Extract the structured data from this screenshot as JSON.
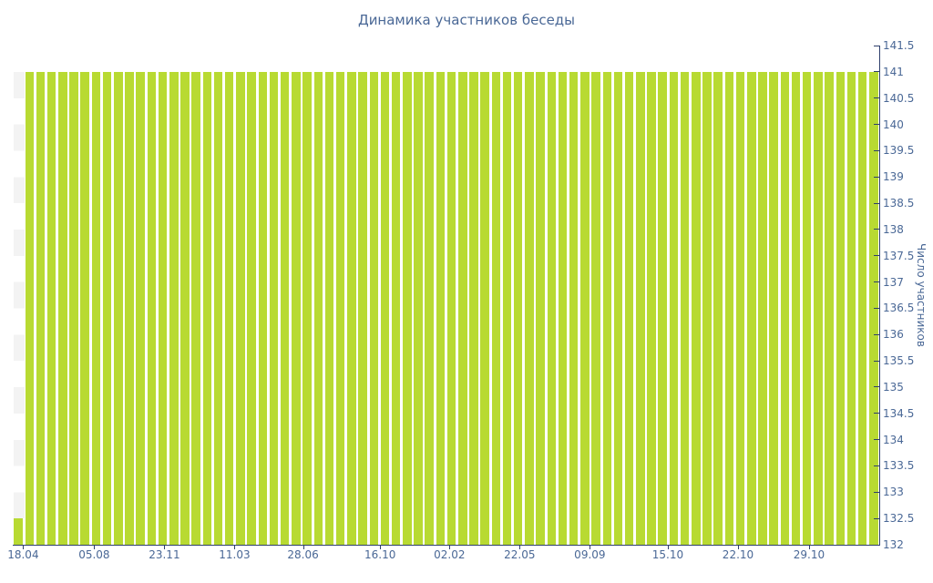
{
  "chart_data": {
    "type": "bar",
    "title": "Динамика участников беседы",
    "xlabel": "",
    "ylabel": "Число участников",
    "ylim": [
      132,
      141.5
    ],
    "ytick_step": 0.5,
    "grid": false,
    "legend": false,
    "y_axis_side": "right",
    "y_tick_labels": [
      "141.5",
      "141",
      "140.5",
      "140",
      "139.5",
      "139",
      "138.5",
      "138",
      "137.5",
      "137",
      "136.5",
      "136",
      "135.5",
      "135",
      "134.5",
      "134",
      "133.5",
      "133",
      "132.5",
      "132"
    ],
    "x_tick_labels": [
      "18.04",
      "05.08",
      "23.11",
      "11.03",
      "28.06",
      "16.10",
      "02.02",
      "22.05",
      "09.09",
      "15.10",
      "22.10",
      "29.10"
    ],
    "x_tick_pos_pct": [
      1.2,
      9.4,
      17.5,
      25.6,
      33.5,
      42.4,
      50.4,
      58.5,
      66.6,
      75.6,
      83.7,
      91.9
    ],
    "num_bars": 78,
    "values": [
      132.5,
      141,
      141,
      141,
      141,
      141,
      141,
      141,
      141,
      141,
      141,
      141,
      141,
      141,
      141,
      141,
      141,
      141,
      141,
      141,
      141,
      141,
      141,
      141,
      141,
      141,
      141,
      141,
      141,
      141,
      141,
      141,
      141,
      141,
      141,
      141,
      141,
      141,
      141,
      141,
      141,
      141,
      141,
      141,
      141,
      141,
      141,
      141,
      141,
      141,
      141,
      141,
      141,
      141,
      141,
      141,
      141,
      141,
      141,
      141,
      141,
      141,
      141,
      141,
      141,
      141,
      141,
      141,
      141,
      141,
      141,
      141,
      141,
      141,
      141,
      141,
      141,
      141
    ],
    "first_column_band_top_value": 141,
    "colors": {
      "bar": "#b8da32",
      "axis": "#2e3f6c",
      "text": "#4a6896",
      "stripe": "#f3f3f3",
      "background": "#ffffff"
    }
  }
}
